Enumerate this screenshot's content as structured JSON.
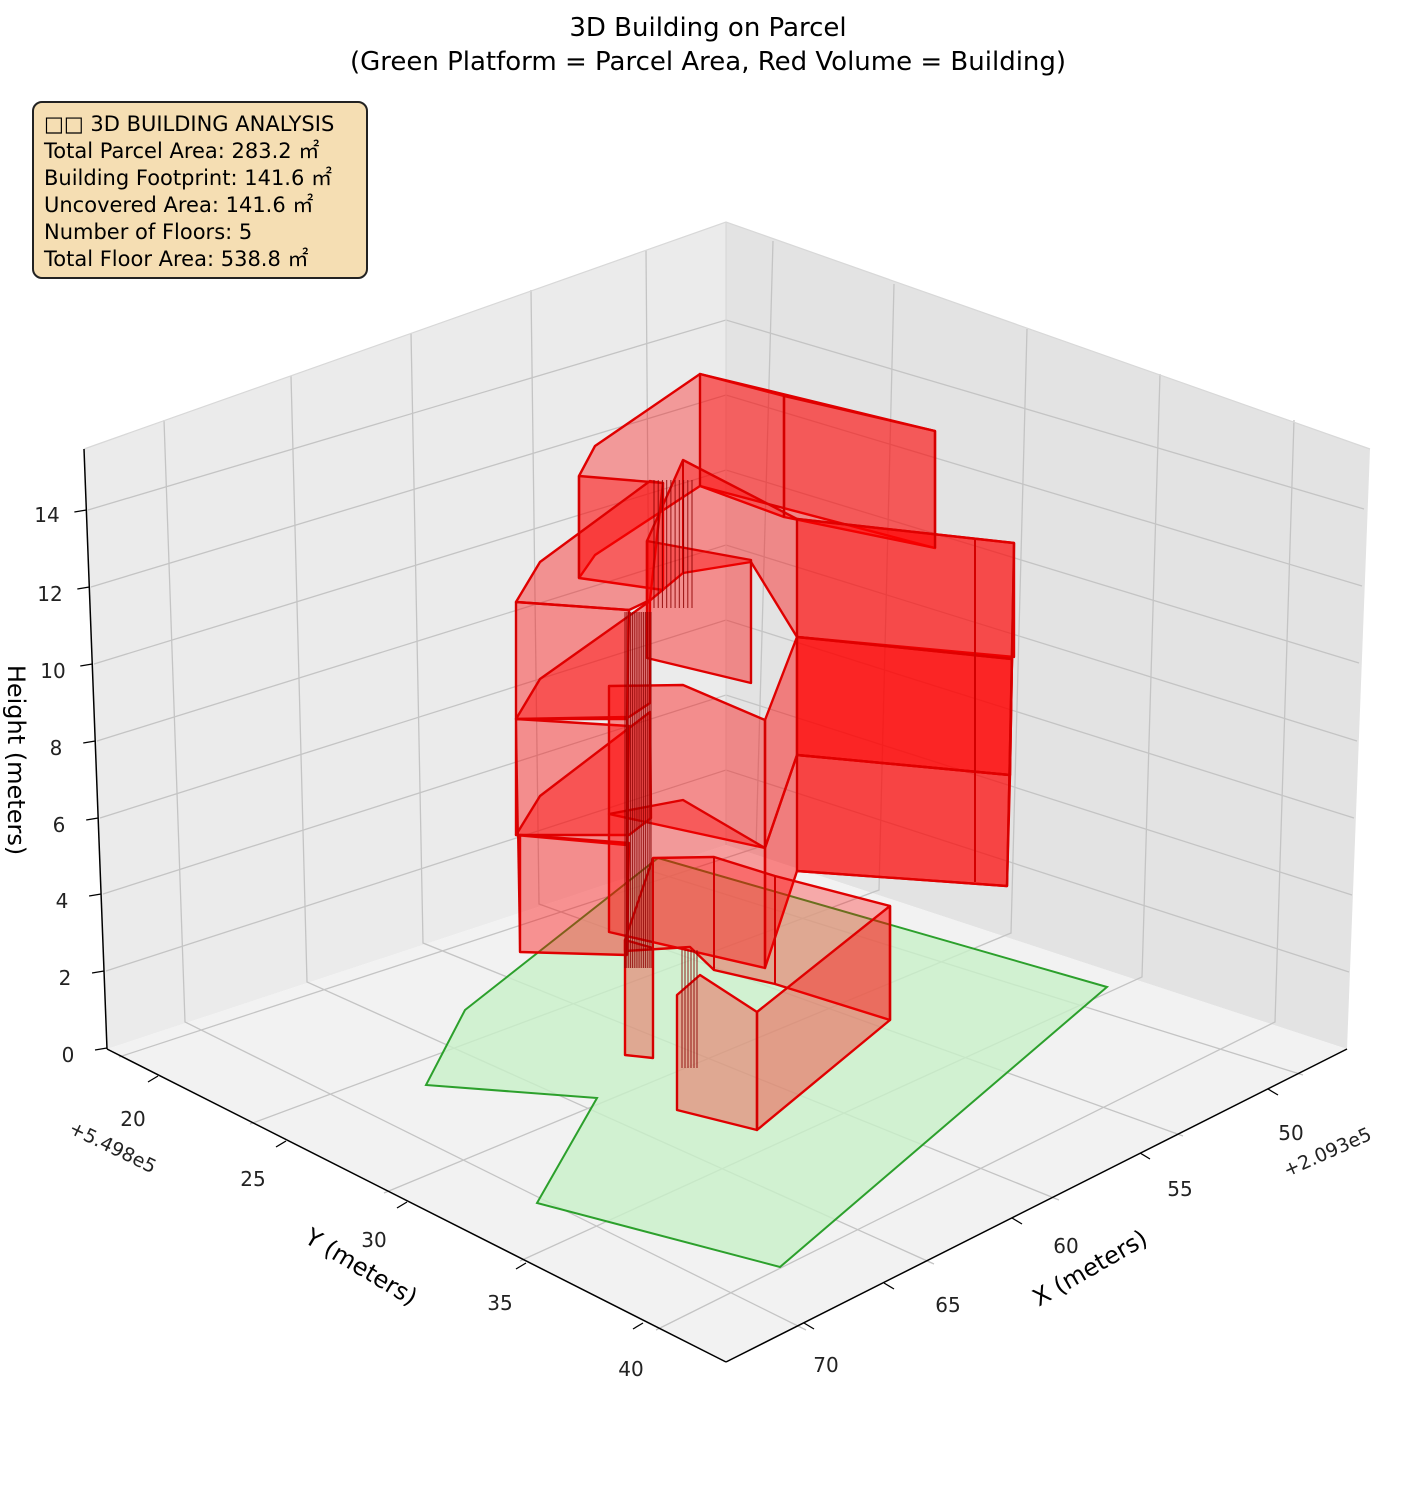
{
  "chart_data": {
    "type": "3d-polygon",
    "title": "3D Building on Parcel",
    "subtitle": "(Green Platform = Parcel Area, Red Volume = Building)",
    "xlabel": "X (meters)",
    "ylabel": "Y (meters)",
    "zlabel": "Height (meters)",
    "x_offset_label": "+2.093e5",
    "y_offset_label": "+5.498e5",
    "x_ticks": [
      "50",
      "55",
      "60",
      "65",
      "70"
    ],
    "y_ticks": [
      "20",
      "25",
      "30",
      "35",
      "40"
    ],
    "z_ticks": [
      "0",
      "2",
      "4",
      "6",
      "8",
      "10",
      "12",
      "14"
    ],
    "grid": true,
    "series": [
      {
        "name": "Parcel Area",
        "color": "#2ca02c",
        "fill": "#c8f0c8"
      },
      {
        "name": "Building",
        "color": "#e00000",
        "fill": "#ff0000"
      }
    ],
    "stats": {
      "heading": "□□ 3D BUILDING ANALYSIS",
      "lines": [
        "Total Parcel Area: 283.2 ㎡",
        "Building Footprint: 141.6 ㎡",
        "Uncovered Area: 141.6 ㎡",
        "Number of Floors: 5",
        "Total Floor Area: 538.8 ㎡"
      ]
    }
  }
}
